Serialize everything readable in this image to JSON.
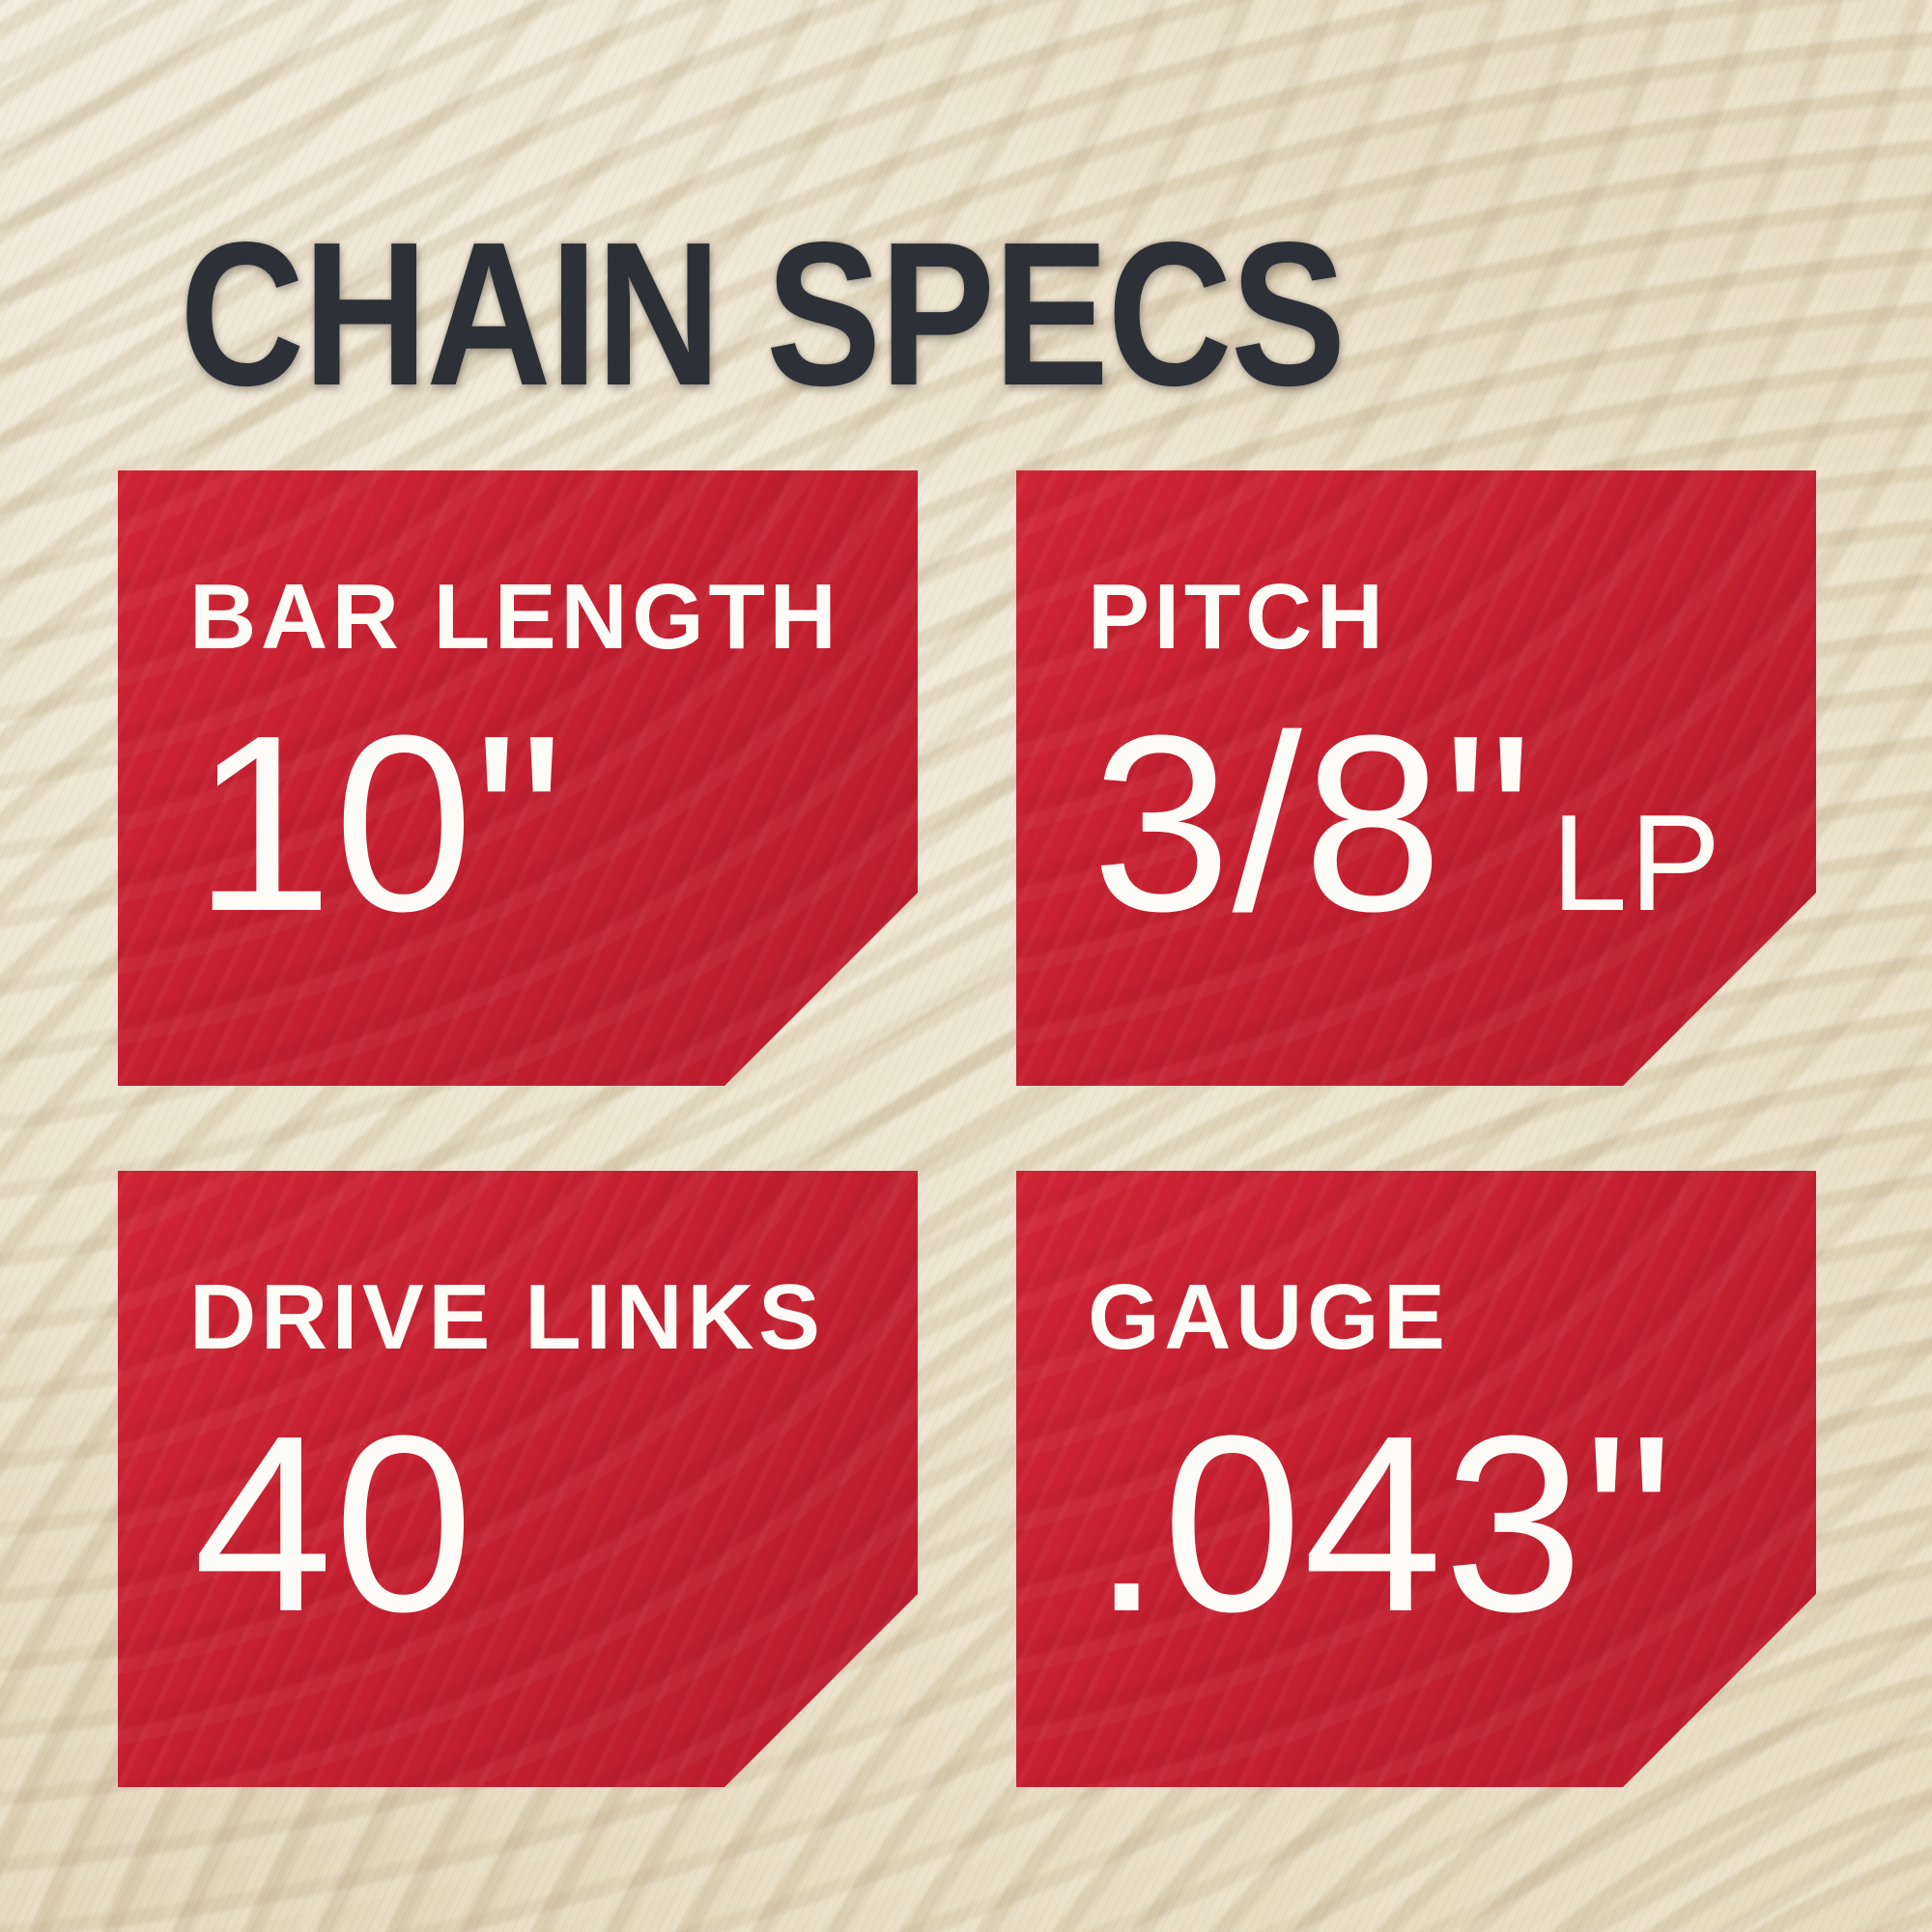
{
  "title": "CHAIN SPECS",
  "colors": {
    "card_red": "#c52031",
    "title_text": "#2d3036",
    "spec_text": "#fdfbf6",
    "background_wood": "#ece1cb"
  },
  "specs": [
    {
      "label": "BAR LENGTH",
      "value": "10\"",
      "suffix": ""
    },
    {
      "label": "PITCH",
      "value": "3/8\"",
      "suffix": "LP"
    },
    {
      "label": "DRIVE LINKS",
      "value": "40",
      "suffix": ""
    },
    {
      "label": "GAUGE",
      "value": ".043\"",
      "suffix": ""
    }
  ]
}
